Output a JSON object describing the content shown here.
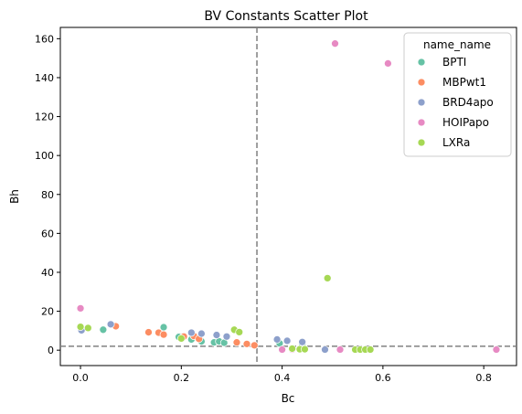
{
  "chart_data": {
    "type": "scatter",
    "title": "BV Constants Scatter Plot",
    "xlabel": "Bc",
    "ylabel": "Bh",
    "xlim": [
      -0.04,
      0.865
    ],
    "ylim": [
      -7.9,
      165.8
    ],
    "xticks": [
      0.0,
      0.2,
      0.4,
      0.6,
      0.8
    ],
    "xtick_labels": [
      "0.0",
      "0.2",
      "0.4",
      "0.6",
      "0.8"
    ],
    "yticks": [
      0,
      20,
      40,
      60,
      80,
      100,
      120,
      140,
      160
    ],
    "ytick_labels": [
      "0",
      "20",
      "40",
      "60",
      "80",
      "100",
      "120",
      "140",
      "160"
    ],
    "grid": false,
    "legend": {
      "title": "name_name",
      "placement": "top-right"
    },
    "reference_lines": [
      {
        "orientation": "vertical",
        "value": 0.35,
        "style": "dashed",
        "color": "#808080"
      },
      {
        "orientation": "horizontal",
        "value": 2,
        "style": "dashed",
        "color": "#808080"
      }
    ],
    "series": [
      {
        "name": "BPTI",
        "color": "#66c2a5",
        "points": [
          [
            0.045,
            10.5
          ],
          [
            0.165,
            11.8
          ],
          [
            0.195,
            6.8
          ],
          [
            0.22,
            5.5
          ],
          [
            0.24,
            4.5
          ],
          [
            0.265,
            4.0
          ],
          [
            0.275,
            4.5
          ],
          [
            0.285,
            3.8
          ],
          [
            0.395,
            3.5
          ],
          [
            0.44,
            3.0
          ]
        ]
      },
      {
        "name": "MBPwt1",
        "color": "#fc8d62",
        "points": [
          [
            0.07,
            12.3
          ],
          [
            0.135,
            9.2
          ],
          [
            0.155,
            9.0
          ],
          [
            0.165,
            8.0
          ],
          [
            0.205,
            7.0
          ],
          [
            0.225,
            7.3
          ],
          [
            0.235,
            5.8
          ],
          [
            0.31,
            4.0
          ],
          [
            0.33,
            3.2
          ],
          [
            0.345,
            2.5
          ]
        ]
      },
      {
        "name": "BRD4apo",
        "color": "#8da0cb",
        "points": [
          [
            0.002,
            10.2
          ],
          [
            0.06,
            13.3
          ],
          [
            0.22,
            9.0
          ],
          [
            0.24,
            8.5
          ],
          [
            0.27,
            7.8
          ],
          [
            0.29,
            7.0
          ],
          [
            0.39,
            5.5
          ],
          [
            0.41,
            4.8
          ],
          [
            0.44,
            4.2
          ],
          [
            0.485,
            0.3
          ]
        ]
      },
      {
        "name": "HOIPapo",
        "color": "#e78ac3",
        "points": [
          [
            0.0,
            21.5
          ],
          [
            0.505,
            157.5
          ],
          [
            0.61,
            147.3
          ],
          [
            0.4,
            0.3
          ],
          [
            0.42,
            0.3
          ],
          [
            0.515,
            0.3
          ],
          [
            0.825,
            0.3
          ]
        ]
      },
      {
        "name": "LXRa",
        "color": "#a6d854",
        "points": [
          [
            0.0,
            12.0
          ],
          [
            0.015,
            11.4
          ],
          [
            0.2,
            6.0
          ],
          [
            0.305,
            10.5
          ],
          [
            0.315,
            9.3
          ],
          [
            0.42,
            0.8
          ],
          [
            0.435,
            0.5
          ],
          [
            0.445,
            0.5
          ],
          [
            0.49,
            37.0
          ],
          [
            0.545,
            0.3
          ],
          [
            0.555,
            0.3
          ],
          [
            0.565,
            0.3
          ],
          [
            0.575,
            0.3
          ]
        ]
      }
    ]
  }
}
